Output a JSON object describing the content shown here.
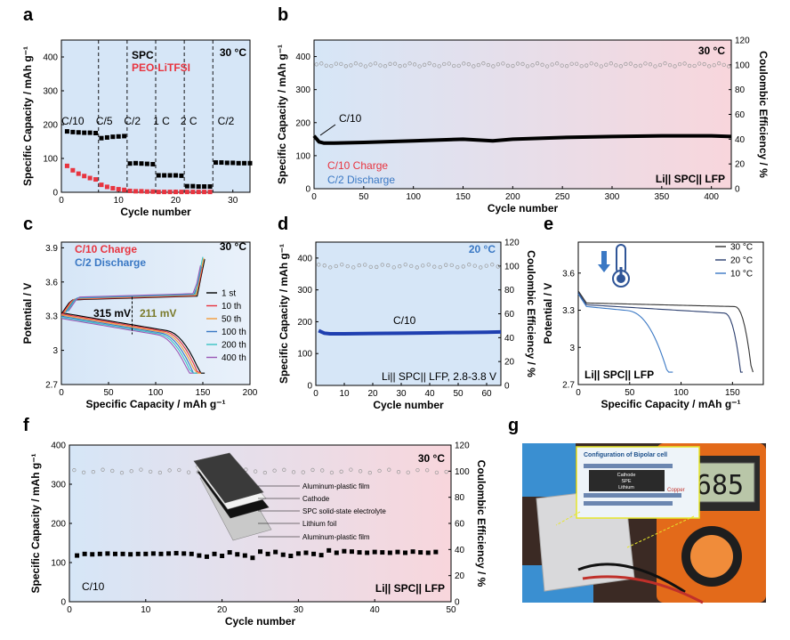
{
  "panels": {
    "a": {
      "label": "a"
    },
    "b": {
      "label": "b"
    },
    "c": {
      "label": "c"
    },
    "d": {
      "label": "d"
    },
    "e": {
      "label": "e"
    },
    "f": {
      "label": "f"
    },
    "g": {
      "label": "g"
    }
  },
  "colors": {
    "red": "#e8343f",
    "blue": "#3a78c4",
    "olive": "#7a7a2a",
    "bg_blue": "#d6e6f7",
    "bg_pink": "#f8d6dc"
  },
  "chart_data": [
    {
      "id": "a",
      "type": "scatter",
      "xlabel": "Cycle number",
      "ylabel": "Specific Capacity / mAh g⁻¹",
      "xlim": [
        0,
        33
      ],
      "ylim": [
        0,
        450
      ],
      "xticks": [
        0,
        10,
        20,
        30
      ],
      "yticks": [
        0,
        100,
        200,
        300,
        400
      ],
      "temperature": "30 °C",
      "rate_labels": [
        {
          "text": "C/10",
          "x": 2.0,
          "y": 200
        },
        {
          "text": "C/5",
          "x": 7.5,
          "y": 200
        },
        {
          "text": "C/2",
          "x": 12.4,
          "y": 200
        },
        {
          "text": "1 C",
          "x": 17.5,
          "y": 200
        },
        {
          "text": "2 C",
          "x": 22.3,
          "y": 200
        },
        {
          "text": "C/2",
          "x": 28.8,
          "y": 200
        }
      ],
      "dividers": [
        6.5,
        11.5,
        16.5,
        21.5,
        26.5
      ],
      "series": [
        {
          "name": "SPC",
          "color": "#000000",
          "x": [
            1,
            2,
            3,
            4,
            5,
            6,
            7,
            8,
            9,
            10,
            11,
            12,
            13,
            14,
            15,
            16,
            17,
            18,
            19,
            20,
            21,
            22,
            23,
            24,
            25,
            26,
            27,
            28,
            29,
            30,
            31,
            32,
            33
          ],
          "y": [
            180,
            178,
            177,
            176,
            176,
            175,
            160,
            162,
            164,
            165,
            166,
            85,
            86,
            85,
            84,
            83,
            50,
            50,
            50,
            50,
            49,
            18,
            18,
            17,
            17,
            17,
            88,
            88,
            87,
            87,
            86,
            86,
            86
          ]
        },
        {
          "name": "PEO-LiTFSI",
          "color": "#e8343f",
          "x": [
            1,
            2,
            3,
            4,
            5,
            6,
            7,
            8,
            9,
            10,
            11,
            12,
            13,
            14,
            15,
            16,
            17,
            18,
            19,
            20,
            21,
            22,
            23,
            24,
            25,
            26
          ],
          "y": [
            78,
            65,
            55,
            48,
            42,
            38,
            22,
            16,
            12,
            9,
            7,
            4,
            3,
            3,
            2,
            2,
            1,
            1,
            1,
            1,
            1,
            1,
            1,
            1,
            1,
            1
          ]
        }
      ]
    },
    {
      "id": "b",
      "type": "scatter",
      "xlabel": "Cycle number",
      "ylabel": "Specific Capacity / mAh g⁻¹",
      "y2label": "Coulombic Efficiency / %",
      "xlim": [
        0,
        420
      ],
      "ylim": [
        0,
        450
      ],
      "y2lim": [
        0,
        120
      ],
      "xticks": [
        0,
        50,
        100,
        150,
        200,
        250,
        300,
        350,
        400
      ],
      "yticks": [
        0,
        100,
        200,
        300,
        400
      ],
      "y2ticks": [
        0,
        20,
        40,
        60,
        80,
        100,
        120
      ],
      "temperature": "30 °C",
      "rate_label": "C/10",
      "legend": [
        "C/10 Charge",
        "C/2  Discharge"
      ],
      "cell_label": "Li|| SPC|| LFP",
      "capacity_series": {
        "x": [
          0,
          5,
          10,
          20,
          50,
          100,
          150,
          180,
          200,
          250,
          300,
          350,
          400,
          420
        ],
        "y": [
          160,
          142,
          138,
          138,
          140,
          145,
          150,
          145,
          150,
          155,
          158,
          160,
          160,
          158
        ]
      },
      "ce_series": {
        "value": 100
      }
    },
    {
      "id": "c",
      "type": "line",
      "xlabel": "Specific Capacity / mAh g⁻¹",
      "ylabel": "Potential / V",
      "xlim": [
        0,
        200
      ],
      "ylim": [
        2.7,
        3.95
      ],
      "xticks": [
        0,
        50,
        100,
        150,
        200
      ],
      "yticks": [
        2.7,
        3.0,
        3.3,
        3.6,
        3.9
      ],
      "temperature": "30 °C",
      "legend_top": [
        "C/10 Charge",
        "C/2 Discharge"
      ],
      "overpotential_labels": [
        "315 mV",
        "211 mV"
      ],
      "series": [
        {
          "name": "1 st",
          "color": "#000000",
          "end": 152
        },
        {
          "name": "10 th",
          "color": "#e8343f",
          "end": 150
        },
        {
          "name": "50 th",
          "color": "#f39c3a",
          "end": 148
        },
        {
          "name": "100 th",
          "color": "#3a78c4",
          "end": 146
        },
        {
          "name": "200 th",
          "color": "#3ac4c4",
          "end": 144
        },
        {
          "name": "400 th",
          "color": "#9b59b6",
          "end": 142
        }
      ]
    },
    {
      "id": "d",
      "type": "scatter",
      "xlabel": "Cycle number",
      "ylabel": "Specific Capacity / mAh g⁻¹",
      "y2label": "Coulombic Efficiency / %",
      "xlim": [
        0,
        65
      ],
      "ylim": [
        0,
        450
      ],
      "y2lim": [
        0,
        120
      ],
      "xticks": [
        0,
        10,
        20,
        30,
        40,
        50,
        60
      ],
      "yticks": [
        0,
        100,
        200,
        300,
        400
      ],
      "y2ticks": [
        0,
        20,
        40,
        60,
        80,
        100,
        120
      ],
      "temperature": "20 °C",
      "rate_label": "C/10",
      "cell_label": "Li|| SPC|| LFP, 2.8-3.8 V",
      "capacity_series": {
        "x": [
          1,
          2,
          3,
          5,
          10,
          20,
          30,
          40,
          50,
          60,
          65
        ],
        "y": [
          172,
          168,
          164,
          162,
          162,
          163,
          164,
          165,
          166,
          167,
          168
        ]
      },
      "ce_series": {
        "value": 100
      }
    },
    {
      "id": "e",
      "type": "line",
      "xlabel": "Specific Capacity / mAh g⁻¹",
      "ylabel": "Potential / V",
      "xlim": [
        0,
        180
      ],
      "ylim": [
        2.7,
        3.85
      ],
      "xticks": [
        0,
        50,
        100,
        150
      ],
      "yticks": [
        2.7,
        3.0,
        3.3,
        3.6
      ],
      "cell_label": "Li|| SPC|| LFP",
      "series": [
        {
          "name": "30 °C",
          "color": "#333333",
          "end": 170
        },
        {
          "name": "20 °C",
          "color": "#2b3e6e",
          "end": 160
        },
        {
          "name": "10 °C",
          "color": "#3a78c4",
          "end": 92
        }
      ]
    },
    {
      "id": "f",
      "type": "scatter",
      "xlabel": "Cycle number",
      "ylabel": "Specific Capacity / mAh g⁻¹",
      "y2label": "Coulombic Efficiency / %",
      "xlim": [
        0,
        50
      ],
      "ylim": [
        0,
        400
      ],
      "y2lim": [
        0,
        120
      ],
      "xticks": [
        0,
        10,
        20,
        30,
        40,
        50
      ],
      "yticks": [
        0,
        100,
        200,
        300,
        400
      ],
      "y2ticks": [
        0,
        20,
        40,
        60,
        80,
        100,
        120
      ],
      "temperature": "30 °C",
      "rate_label": "C/10",
      "cell_label": "Li|| SPC|| LFP",
      "capacity_series": {
        "x": [
          1,
          2,
          3,
          4,
          5,
          6,
          7,
          8,
          9,
          10,
          11,
          12,
          13,
          14,
          15,
          16,
          17,
          18,
          19,
          20,
          21,
          22,
          23,
          24,
          25,
          26,
          27,
          28,
          29,
          30,
          31,
          32,
          33,
          34,
          35,
          36,
          37,
          38,
          39,
          40,
          41,
          42,
          43,
          44,
          45,
          46,
          47,
          48
        ],
        "y": [
          118,
          122,
          121,
          122,
          123,
          122,
          122,
          121,
          122,
          122,
          123,
          122,
          123,
          124,
          123,
          122,
          118,
          115,
          122,
          117,
          126,
          121,
          118,
          112,
          128,
          122,
          127,
          120,
          117,
          123,
          125,
          122,
          119,
          131,
          125,
          129,
          128,
          126,
          125,
          127,
          126,
          125,
          127,
          125,
          128,
          126,
          125,
          127
        ]
      },
      "ce_series": {
        "value": 100
      },
      "inset_labels": [
        "Aluminum-plastic film",
        "Cathode",
        "SPC solid-state electrolyte",
        "Lithium foil",
        "Aluminum-plastic film"
      ]
    }
  ],
  "photo_g": {
    "title": "Configuration of Bipolar cell",
    "layers": [
      "Cathode",
      "SPE",
      "Lithium"
    ],
    "copper": "Copper",
    "meter_reading": "0685"
  }
}
